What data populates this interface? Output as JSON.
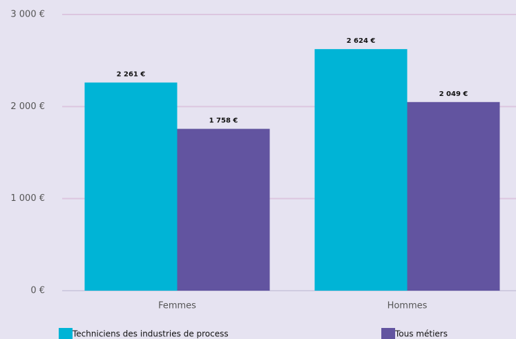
{
  "chart_data": {
    "type": "bar",
    "categories": [
      "Femmes",
      "Hommes"
    ],
    "series": [
      {
        "name": "Techniciens des industries de process",
        "color": "#00b4d6",
        "values": [
          2261,
          2624
        ],
        "value_labels": [
          "2 261 €",
          "2 624 €"
        ]
      },
      {
        "name": "Tous métiers",
        "color": "#6254a0",
        "values": [
          1758,
          2049
        ],
        "value_labels": [
          "1 758 €",
          "2 049 €"
        ]
      }
    ],
    "ylim": [
      0,
      3000
    ],
    "yticks": [
      {
        "value": 0,
        "label": "0 €"
      },
      {
        "value": 1000,
        "label": "1 000 €"
      },
      {
        "value": 2000,
        "label": "2 000 €"
      },
      {
        "value": 3000,
        "label": "3 000 €"
      }
    ],
    "grid": true,
    "legend": "bottom"
  }
}
